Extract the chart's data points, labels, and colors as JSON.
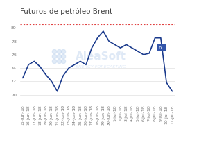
{
  "title": "Futuros de petróleo Brent",
  "dates": [
    "15-jun-18",
    "16-jun-18",
    "17-jun-18",
    "18-jun-18",
    "19-jun-18",
    "20-jun-18",
    "21-jun-18",
    "22-jun-18",
    "23-jun-18",
    "24-jun-18",
    "25-jun-18",
    "26-jun-18",
    "27-jun-18",
    "28-jun-18",
    "29-jun-18",
    "30-jun-18",
    "1-jul-18",
    "2-jul-18",
    "3-jul-18",
    "4-jul-18",
    "5-jul-18",
    "6-jul-18",
    "7-jul-18",
    "8-jul-18",
    "9-jul-18",
    "10-jul-18",
    "11-jul-18"
  ],
  "values": [
    72.5,
    74.5,
    75.0,
    74.2,
    73.0,
    72.0,
    70.5,
    72.8,
    74.0,
    74.5,
    75.0,
    74.5,
    77.0,
    78.5,
    79.5,
    78.0,
    77.5,
    77.0,
    77.5,
    77.0,
    76.5,
    76.0,
    76.2,
    78.5,
    78.5,
    71.8,
    70.5
  ],
  "dashed_line_value": 80.5,
  "annotation_text": "6,.",
  "line_color": "#1a3a8c",
  "dashed_color": "#e04040",
  "annotation_bg": "#3355aa",
  "annotation_text_color": "#ffffff",
  "ytick_vals": [
    70,
    72,
    74,
    76,
    78,
    80
  ],
  "ylim": [
    69.0,
    81.5
  ],
  "background_color": "#ffffff",
  "title_fontsize": 7.5,
  "tick_fontsize": 4.5,
  "watermark_alea_fontsize": 11,
  "watermark_ef_fontsize": 4.5
}
